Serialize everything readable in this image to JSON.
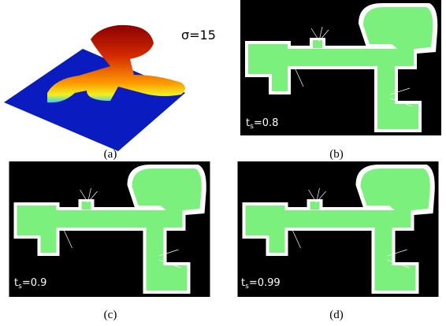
{
  "panels": [
    {
      "caption": "(a)",
      "label": "σ=15"
    },
    {
      "caption": "(b)",
      "label": {
        "var": "t",
        "sub": "s",
        "value": "=0.8"
      }
    },
    {
      "caption": "(c)",
      "label": {
        "var": "t",
        "sub": "s",
        "value": "=0.9"
      }
    },
    {
      "caption": "(d)",
      "label": {
        "var": "t",
        "sub": "s",
        "value": "=0.99"
      }
    }
  ]
}
